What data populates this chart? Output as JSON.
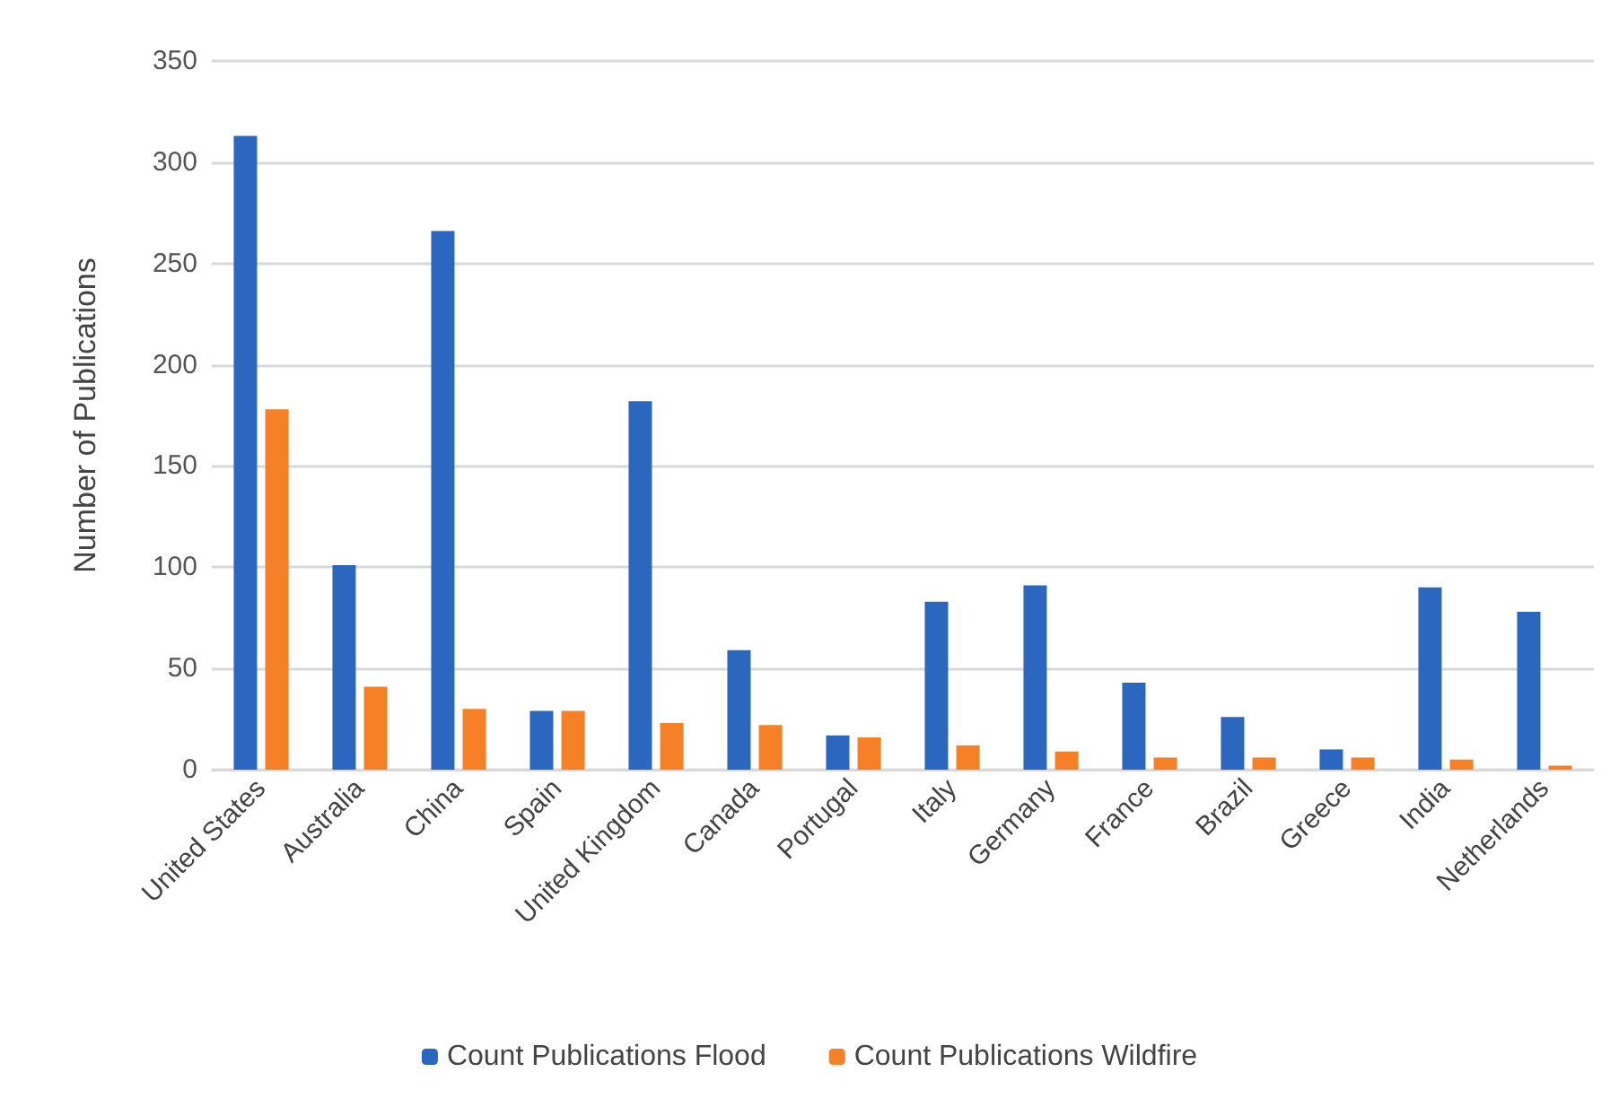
{
  "chart_data": {
    "type": "bar",
    "ylabel": "Number of Publications",
    "categories": [
      "United States",
      "Australia",
      "China",
      "Spain",
      "United Kingdom",
      "Canada",
      "Portugal",
      "Italy",
      "Germany",
      "France",
      "Brazil",
      "Greece",
      "India",
      "Netherlands"
    ],
    "series": [
      {
        "name": "Count Publications Flood",
        "color": "#2b67bf",
        "values": [
          313,
          101,
          266,
          29,
          182,
          59,
          17,
          83,
          91,
          43,
          26,
          10,
          90,
          78
        ]
      },
      {
        "name": "Count Publications Wildfire",
        "color": "#f58026",
        "values": [
          178,
          41,
          30,
          29,
          23,
          22,
          16,
          12,
          9,
          6,
          6,
          6,
          5,
          2
        ]
      }
    ],
    "ylim": [
      0,
      350
    ],
    "yticks": [
      0,
      50,
      100,
      150,
      200,
      250,
      300,
      350
    ],
    "grid": "y",
    "legend": "bottom"
  }
}
